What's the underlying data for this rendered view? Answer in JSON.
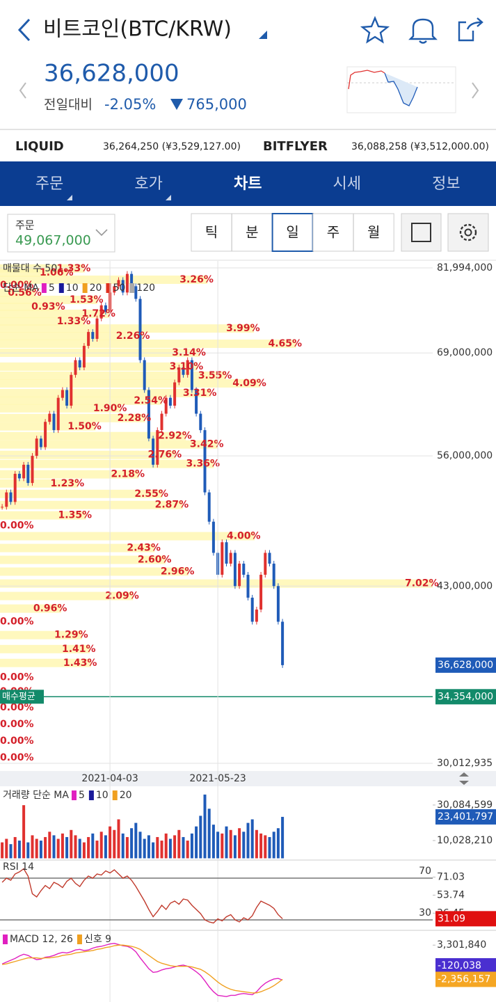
{
  "header": {
    "title": "비트코인(BTC/KRW)",
    "price": "36,628,000",
    "change_label": "전일대비",
    "change_pct": "-2.05%",
    "change_amount": "765,000"
  },
  "exchanges": [
    {
      "name": "LIQUID",
      "value": "36,264,250 (¥3,529,127.00)"
    },
    {
      "name": "BITFLYER",
      "value": "36,088,258 (¥3,512,000.00)"
    }
  ],
  "tabs": {
    "items": [
      "주문",
      "호가",
      "차트",
      "시세",
      "정보"
    ],
    "active": 2
  },
  "order": {
    "label": "주문",
    "value": "49,067,000"
  },
  "periods": {
    "items": [
      "틱",
      "분",
      "일",
      "주",
      "월"
    ],
    "active": 2
  },
  "chart_data": [
    {
      "type": "candlestick",
      "log_scale": true,
      "grid": true,
      "ylim": [
        30012935,
        81994000
      ],
      "yticks": [
        {
          "value": 81994000,
          "label": "81,994,000"
        },
        {
          "value": 69000000,
          "label": "69,000,000"
        },
        {
          "value": 56000000,
          "label": "56,000,000"
        },
        {
          "value": 43000000,
          "label": "43,000,000"
        },
        {
          "value": 30012935,
          "label": "30,012,935"
        }
      ],
      "xticks": [
        {
          "value": 25,
          "label": "2021-04-03"
        },
        {
          "value": 50,
          "label": "2021-05-23"
        }
      ],
      "colors": {
        "up": "#e0312f",
        "down": "#1f5bb8"
      },
      "values": [
        50500000,
        52000000,
        51000000,
        54000000,
        53500000,
        55000000,
        53000000,
        56000000,
        58000000,
        57000000,
        60000000,
        61000000,
        59000000,
        63000000,
        64000000,
        62000000,
        66000000,
        68000000,
        67000000,
        70000000,
        72000000,
        71000000,
        74000000,
        76000000,
        75000000,
        78000000,
        79000000,
        80000000,
        78000000,
        81000000,
        79000000,
        77000000,
        68000000,
        64000000,
        58000000,
        55000000,
        59000000,
        61000000,
        63000000,
        62000000,
        65000000,
        67000000,
        66000000,
        68000000,
        64000000,
        61000000,
        59000000,
        52000000,
        49000000,
        46000000,
        44000000,
        47000000,
        45000000,
        46000000,
        43000000,
        45000000,
        44000000,
        42000000,
        40000000,
        41000000,
        44000000,
        46000000,
        45000000,
        43000000,
        40000000,
        36628000
      ],
      "volume_profile": {
        "name": "매물대 수 50",
        "color": "#fff7b3",
        "prices": [
          81900000,
          81190000,
          80050000,
          79150000,
          77930000,
          76840000,
          75770000,
          74700000,
          73540000,
          72510000,
          71400000,
          70300000,
          69030000,
          67110000,
          65890000,
          64870000,
          63600000,
          62630000,
          61670000,
          60460000,
          59450000,
          58290000,
          57310000,
          56110000,
          55090000,
          53940000,
          52950000,
          51840000,
          50690000,
          49630000,
          48600000,
          47580000,
          46450000,
          45350000,
          44280000,
          43220000,
          42140000,
          41080000,
          39990000,
          38930000,
          37840000,
          36790000,
          35720000,
          34720000,
          33610000,
          32480000,
          31400000,
          30350000
        ],
        "values": [
          1.33,
          1.06,
          3.26,
          0,
          0.56,
          1.53,
          0.93,
          1.72,
          1.33,
          3.99,
          2.26,
          4.65,
          3.14,
          3.1,
          3.55,
          4.09,
          3.31,
          2.54,
          1.9,
          2.28,
          1.5,
          2.92,
          3.42,
          2.76,
          3.36,
          2.18,
          1.23,
          2.55,
          2.87,
          1.35,
          0,
          4.0,
          2.43,
          2.6,
          2.96,
          7.02,
          2.09,
          0.96,
          0,
          1.29,
          1.41,
          1.43,
          0,
          0,
          0,
          0,
          0,
          0
        ],
        "value_labels": [
          "1.33%",
          "1.06%",
          "3.26%",
          "0.00%",
          "0.56%",
          "1.53%",
          "0.93%",
          "1.72%",
          "1.33%",
          "3.99%",
          "2.26%",
          "4.65%",
          "3.14%",
          "3.10%",
          "3.55%",
          "4.09%",
          "3.31%",
          "2.54%",
          "1.90%",
          "2.28%",
          "1.50%",
          "2.92%",
          "3.42%",
          "2.76%",
          "3.36%",
          "2.18%",
          "1.23%",
          "2.55%",
          "2.87%",
          "1.35%",
          "0.00%",
          "4.00%",
          "2.43%",
          "2.60%",
          "2.96%",
          "7.02%",
          "2.09%",
          "0.96%",
          "0.00%",
          "1.29%",
          "1.41%",
          "1.43%",
          "0.00%",
          "0.00%",
          "0.00%",
          "0.00%",
          "0.00%",
          "0.00%"
        ]
      },
      "ma_legend": {
        "label": "단순 MA",
        "periods": [
          "5",
          "10",
          "20",
          "50",
          "120"
        ],
        "colors": [
          "#e020c0",
          "#1a1a9a",
          "#f0a020",
          "#e03020",
          "#aaaaaa"
        ]
      },
      "buy_average": {
        "label": "매수평균",
        "value": 34354000,
        "value_label": "34,354,000",
        "color": "#138a6a"
      },
      "badges": [
        {
          "value": 36628000,
          "label": "36,628,000",
          "color": "#1f5bb8"
        }
      ]
    },
    {
      "type": "bar",
      "ylim": [
        0,
        38700000
      ],
      "yticks": [
        {
          "value": 10028210,
          "label": "10,028,210"
        },
        {
          "value": 30084599,
          "label": "30,084,599"
        }
      ],
      "ma_legend": {
        "label": "거래량 단순 MA",
        "periods": [
          "5",
          "10",
          "20"
        ],
        "colors": [
          "#e020c0",
          "#1a1a9a",
          "#f0a020"
        ]
      },
      "values": [
        9000000,
        11000000,
        8000000,
        12000000,
        10000000,
        30000000,
        9000000,
        13000000,
        11000000,
        10000000,
        12000000,
        15000000,
        13000000,
        11000000,
        14000000,
        12000000,
        16000000,
        13000000,
        11000000,
        9000000,
        12000000,
        14000000,
        10000000,
        15000000,
        13000000,
        18000000,
        16000000,
        22000000,
        14000000,
        12000000,
        17000000,
        20000000,
        15000000,
        11000000,
        13000000,
        9000000,
        12000000,
        10000000,
        14000000,
        11000000,
        13000000,
        16000000,
        12000000,
        10000000,
        14000000,
        18000000,
        24000000,
        36000000,
        28000000,
        19000000,
        15000000,
        14000000,
        18000000,
        16000000,
        13000000,
        17000000,
        15000000,
        20000000,
        22000000,
        16000000,
        14000000,
        13000000,
        12000000,
        15000000,
        17000000,
        23401797
      ],
      "badges": [
        {
          "value": 23401797,
          "label": "23,401,797",
          "color": "#1f5bb8"
        }
      ]
    },
    {
      "type": "line",
      "title": "RSI 14",
      "color": "#c0392b",
      "ylim": [
        21.3,
        84.7
      ],
      "yticks": [
        71.03,
        53.74,
        36.45
      ],
      "reference_lines": [
        70,
        30
      ],
      "values": [
        66,
        70,
        68,
        74,
        76,
        79,
        72,
        55,
        52,
        58,
        63,
        60,
        66,
        64,
        61,
        67,
        70,
        65,
        62,
        68,
        72,
        70,
        74,
        73,
        77,
        75,
        78,
        74,
        70,
        72,
        68,
        62,
        55,
        48,
        40,
        33,
        38,
        44,
        40,
        46,
        48,
        45,
        50,
        49,
        44,
        40,
        36,
        30,
        28,
        27,
        31,
        29,
        33,
        35,
        30,
        28,
        32,
        30,
        34,
        42,
        48,
        46,
        44,
        41,
        35,
        31.09
      ],
      "badges": [
        {
          "value": 31.09,
          "label": "31.09",
          "color": "#e01010"
        }
      ]
    },
    {
      "type": "line",
      "ylim": [
        -6100000,
        5400000
      ],
      "yticks": [
        {
          "value": 3301840,
          "label": "3,301,840"
        }
      ],
      "series": [
        {
          "name": "MACD 12, 26",
          "color": "#e020c0",
          "values": [
            200000,
            500000,
            800000,
            1100000,
            1500000,
            1800000,
            1600000,
            1200000,
            900000,
            1000000,
            1300000,
            1400000,
            1600000,
            1900000,
            2100000,
            2000000,
            2200000,
            2500000,
            2600000,
            2400000,
            2500000,
            2800000,
            3000000,
            3100000,
            3300000,
            3500000,
            3600000,
            3400000,
            3200000,
            3100000,
            2800000,
            2200000,
            1200000,
            300000,
            -600000,
            -1200000,
            -1100000,
            -800000,
            -600000,
            -500000,
            -300000,
            -100000,
            0,
            -200000,
            -600000,
            -1100000,
            -1700000,
            -2600000,
            -3600000,
            -4400000,
            -5000000,
            -5100000,
            -5200000,
            -5000000,
            -5000000,
            -4800000,
            -4700000,
            -4800000,
            -4900000,
            -4400000,
            -3600000,
            -3000000,
            -2600000,
            -2300000,
            -2200000,
            -2476195
          ]
        },
        {
          "name": "신호 9",
          "color": "#f0a020",
          "values": [
            100000,
            200000,
            400000,
            600000,
            800000,
            1000000,
            1200000,
            1200000,
            1200000,
            1100000,
            1200000,
            1200000,
            1300000,
            1400000,
            1600000,
            1700000,
            1800000,
            2000000,
            2100000,
            2200000,
            2300000,
            2400000,
            2600000,
            2700000,
            2900000,
            3000000,
            3200000,
            3300000,
            3300000,
            3200000,
            3100000,
            2900000,
            2600000,
            2100000,
            1600000,
            1100000,
            600000,
            300000,
            100000,
            -100000,
            -200000,
            -200000,
            -200000,
            -200000,
            -300000,
            -500000,
            -700000,
            -1100000,
            -1600000,
            -2200000,
            -2800000,
            -3300000,
            -3700000,
            -4000000,
            -4200000,
            -4300000,
            -4400000,
            -4500000,
            -4600000,
            -4600000,
            -4400000,
            -4100000,
            -3800000,
            -3400000,
            -2900000,
            -2356157
          ]
        }
      ],
      "badges": [
        {
          "value": -120038,
          "label": "-120,038",
          "color": "#4a2fd0"
        },
        {
          "value": -2356157,
          "label": "-2,356,157",
          "color": "#f5a623"
        }
      ]
    }
  ]
}
